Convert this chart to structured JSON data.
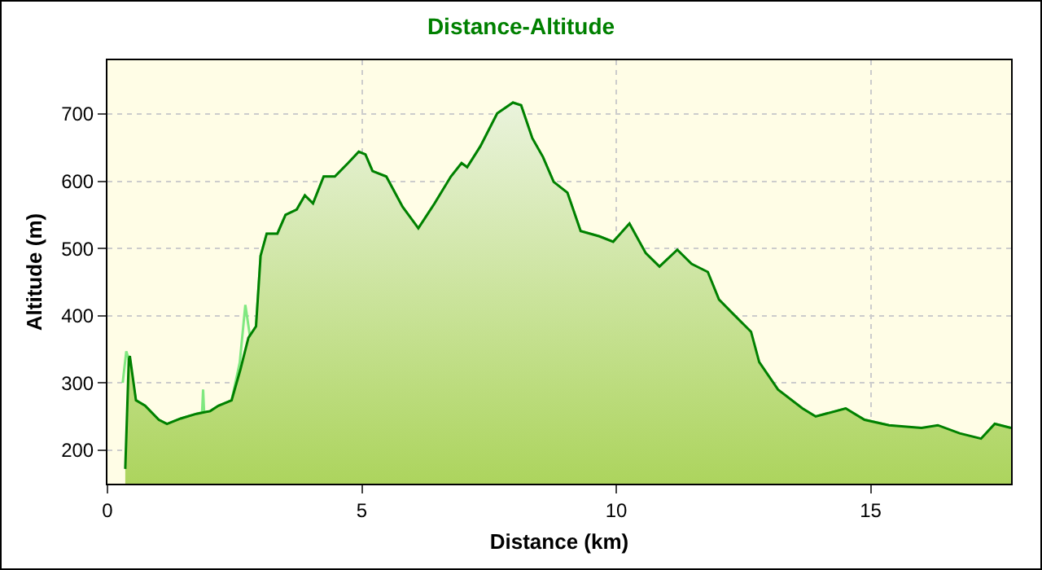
{
  "chart_data": {
    "type": "area",
    "title": "Distance-Altitude",
    "xlabel": "Distance (km)",
    "ylabel": "Altitude (m)",
    "xlim": [
      0,
      17.76
    ],
    "ylim": [
      150,
      780
    ],
    "xticks": [
      0,
      5,
      10,
      15
    ],
    "yticks": [
      200,
      300,
      400,
      500,
      600,
      700
    ],
    "grid": true,
    "series": [
      {
        "type": "line",
        "color": "#80e880",
        "x": [
          0.3,
          0.37,
          0.44,
          0.56,
          0.74,
          1.01,
          1.17,
          1.44,
          1.75,
          1.86,
          1.88,
          1.9,
          2.02,
          2.18,
          2.44,
          2.6,
          2.71,
          2.8,
          2.92,
          3.01,
          3.13,
          3.34,
          3.5,
          3.72,
          3.88,
          4.04,
          4.25,
          4.47,
          4.73,
          4.94,
          5.07,
          5.21,
          5.48,
          5.8,
          6.11,
          6.43,
          6.75,
          6.96,
          7.07,
          7.33,
          7.66,
          7.97,
          8.13,
          8.35,
          8.56,
          8.77,
          9.04,
          9.3,
          9.67,
          9.94,
          10.26,
          10.58,
          10.85,
          11.2,
          11.48,
          11.8,
          12.02,
          12.28,
          12.65,
          12.81,
          13.18,
          13.66,
          13.92,
          14.51,
          14.88,
          15.36,
          16.0,
          16.32,
          16.75,
          17.17,
          17.44,
          17.76
        ],
        "values": [
          300,
          347,
          330,
          274,
          266,
          245,
          239,
          247,
          254,
          256,
          290,
          256,
          258,
          266,
          274,
          330,
          416,
          370,
          384,
          489,
          522,
          522,
          550,
          558,
          579,
          567,
          607,
          607,
          627,
          644,
          640,
          615,
          607,
          562,
          530,
          567,
          607,
          627,
          621,
          652,
          701,
          717,
          713,
          664,
          636,
          599,
          583,
          526,
          518,
          510,
          537,
          493,
          473,
          498,
          477,
          460,
          418,
          396,
          366,
          325,
          282,
          258,
          250,
          262,
          245,
          237,
          230,
          232,
          219,
          217,
          239,
          233
        ]
      },
      {
        "color": "#008000",
        "x": [
          0.35,
          0.42,
          0.44,
          0.56,
          0.74,
          1.01,
          1.17,
          1.44,
          1.75,
          2.02,
          2.18,
          2.44,
          2.61,
          2.77,
          2.92,
          3.01,
          3.13,
          3.34,
          3.5,
          3.72,
          3.88,
          4.04,
          4.25,
          4.47,
          4.73,
          4.94,
          5.07,
          5.21,
          5.48,
          5.8,
          6.11,
          6.43,
          6.75,
          6.96,
          7.07,
          7.33,
          7.66,
          7.97,
          8.13,
          8.35,
          8.56,
          8.77,
          9.04,
          9.3,
          9.67,
          9.94,
          10.26,
          10.58,
          10.85,
          11.2,
          11.48,
          11.8,
          12.02,
          12.28,
          12.65,
          12.81,
          13.18,
          13.66,
          13.92,
          14.51,
          14.88,
          15.36,
          16.0,
          16.32,
          16.75,
          17.17,
          17.44,
          17.76
        ],
        "values": [
          172,
          335,
          340,
          274,
          266,
          245,
          239,
          247,
          254,
          258,
          266,
          274,
          319,
          367,
          384,
          489,
          522,
          522,
          550,
          558,
          579,
          567,
          607,
          607,
          627,
          644,
          640,
          615,
          607,
          562,
          530,
          567,
          607,
          627,
          621,
          652,
          701,
          717,
          713,
          664,
          636,
          599,
          583,
          526,
          518,
          510,
          537,
          493,
          473,
          498,
          477,
          465,
          424,
          404,
          376,
          331,
          290,
          262,
          250,
          262,
          245,
          237,
          233,
          237,
          225,
          217,
          239,
          233
        ]
      }
    ]
  }
}
